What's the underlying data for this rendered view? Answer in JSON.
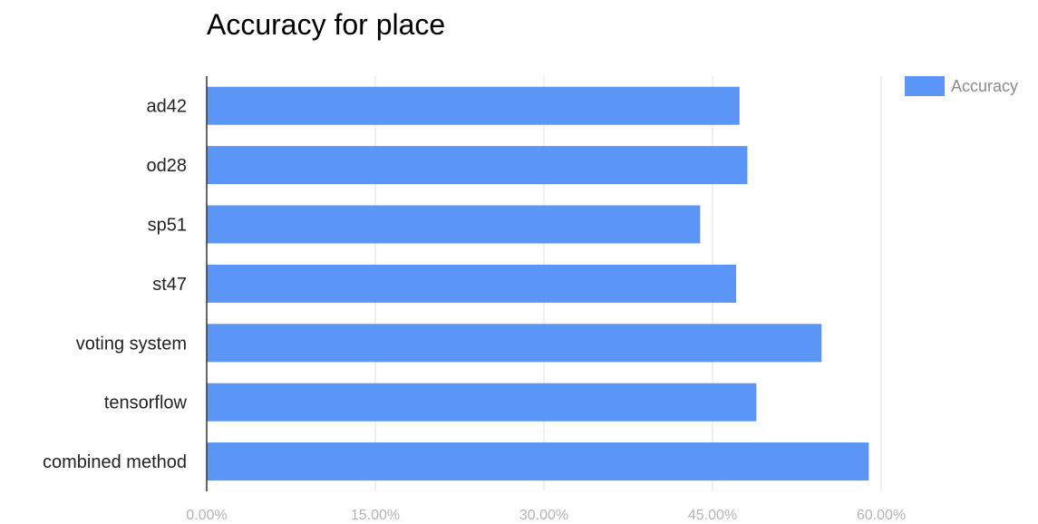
{
  "chart_data": {
    "type": "bar",
    "orientation": "horizontal",
    "title": "Accuracy for place",
    "categories": [
      "ad42",
      "od28",
      "sp51",
      "st47",
      "voting system",
      "tensorflow",
      "combined method"
    ],
    "series": [
      {
        "name": "Accuracy",
        "color": "#5b95f5",
        "values": [
          47.4,
          48.1,
          43.9,
          47.1,
          54.7,
          48.9,
          58.9
        ]
      }
    ],
    "value_unit": "percent",
    "xlim": [
      0,
      60
    ],
    "xticks": [
      0,
      15,
      30,
      45,
      60
    ],
    "xtick_labels": [
      "0.00%",
      "15.00%",
      "30.00%",
      "45.00%",
      "60.00%"
    ],
    "xlabel": "",
    "ylabel": "",
    "grid": true,
    "legend_position": "top-right",
    "colors": {
      "bar": "#5b95f5",
      "grid": "#e0e0e0",
      "axis": "#333333",
      "tick_text": "#b3b3b3"
    }
  }
}
